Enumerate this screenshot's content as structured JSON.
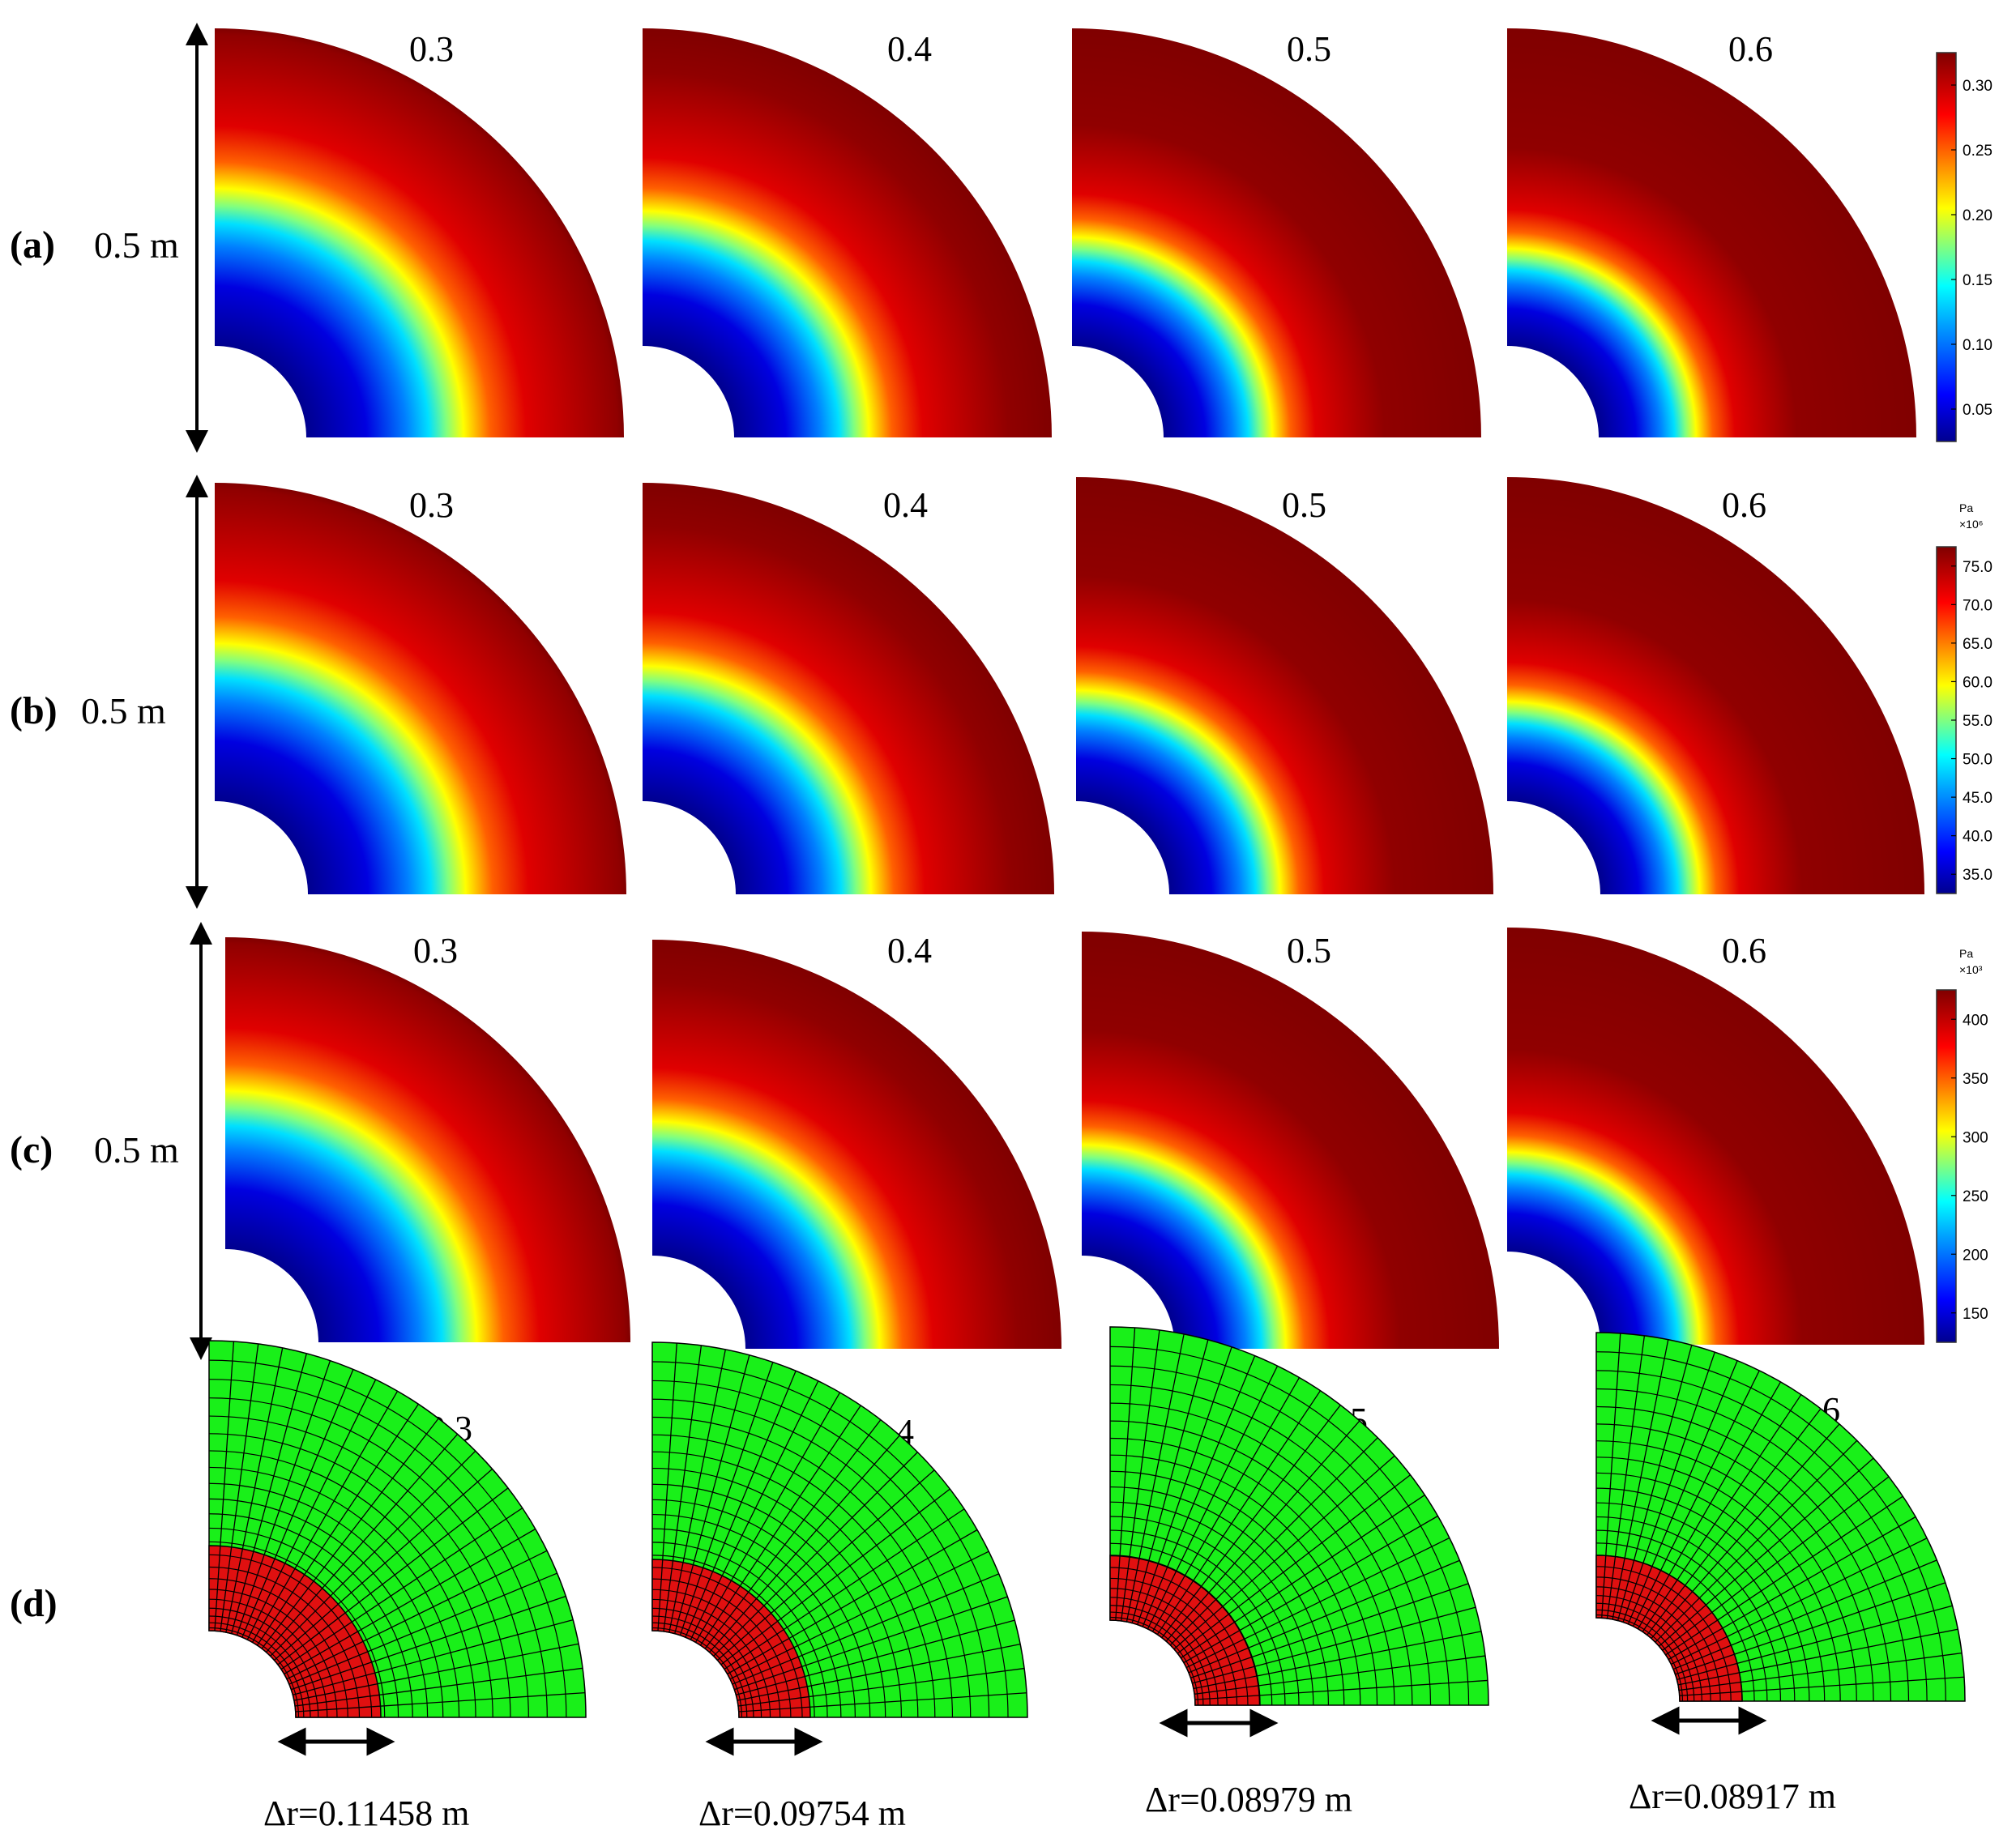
{
  "rows": [
    {
      "label": "(a)",
      "dimension": "0.5 m",
      "panels": [
        "0.3",
        "0.4",
        "0.5",
        "0.6"
      ],
      "colorbar": {
        "unit": "",
        "multiplier": "",
        "ticks": [
          "0.30",
          "0.25",
          "0.20",
          "0.15",
          "0.10",
          "0.05"
        ]
      }
    },
    {
      "label": "(b)",
      "dimension": "0.5 m",
      "panels": [
        "0.3",
        "0.4",
        "0.5",
        "0.6"
      ],
      "colorbar": {
        "unit": "Pa",
        "multiplier": "×10⁶",
        "ticks": [
          "75.0",
          "70.0",
          "65.0",
          "60.0",
          "55.0",
          "50.0",
          "45.0",
          "40.0",
          "35.0"
        ]
      }
    },
    {
      "label": "(c)",
      "dimension": "0.5 m",
      "panels": [
        "0.3",
        "0.4",
        "0.5",
        "0.6"
      ],
      "colorbar": {
        "unit": "Pa",
        "multiplier": "×10³",
        "ticks": [
          "400",
          "350",
          "300",
          "250",
          "200",
          "150"
        ]
      }
    },
    {
      "label": "(d)",
      "panels": [
        "0.3",
        "0.4",
        "0.5",
        "0.6"
      ],
      "delta_r": [
        "Δr=0.11458 m",
        "Δr=0.09754 m",
        "Δr=0.08979 m",
        "Δr=0.08917 m"
      ]
    }
  ],
  "colors": {
    "jet_low": "#00008f",
    "jet_high": "#800000",
    "mesh_outer": "#19f019",
    "mesh_inner": "#e01010",
    "mesh_line": "#000000"
  }
}
